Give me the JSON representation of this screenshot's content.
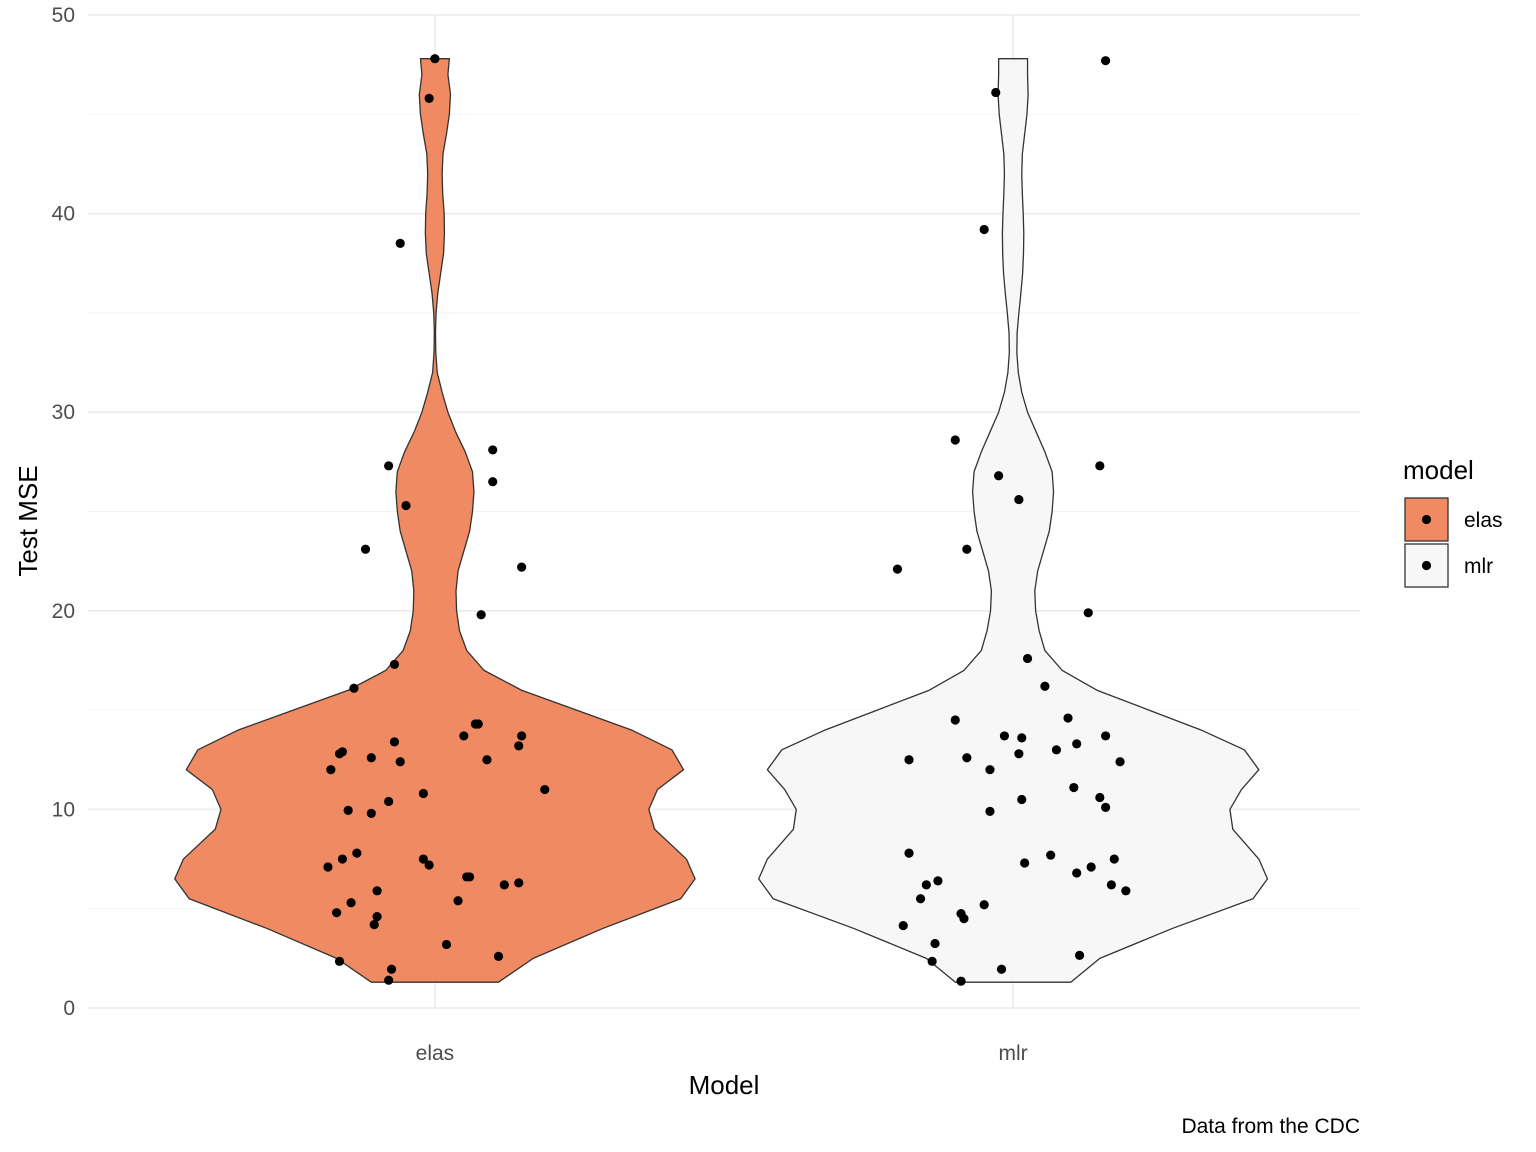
{
  "chart_data": {
    "type": "violin",
    "xlabel": "Model",
    "ylabel": "Test MSE",
    "caption": "Data from the CDC",
    "categories": [
      "elas",
      "mlr"
    ],
    "y_ticks": [
      0,
      10,
      20,
      30,
      40,
      50
    ],
    "ylim": [
      0,
      50
    ],
    "grid": true,
    "legend": {
      "title": "model",
      "placement": "right",
      "entries": [
        {
          "label": "elas",
          "color": "#EF8A62"
        },
        {
          "label": "mlr",
          "color": "#F7F7F7"
        }
      ]
    },
    "violins": [
      {
        "category": "elas",
        "color": "#EF8A62",
        "y_range": [
          1.3,
          47.8
        ],
        "density_profile": [
          [
            1.3,
            0.22
          ],
          [
            2.5,
            0.34
          ],
          [
            4.0,
            0.58
          ],
          [
            5.5,
            0.85
          ],
          [
            6.5,
            0.9
          ],
          [
            7.5,
            0.87
          ],
          [
            9.0,
            0.76
          ],
          [
            10.0,
            0.74
          ],
          [
            11.0,
            0.77
          ],
          [
            12.0,
            0.86
          ],
          [
            13.0,
            0.82
          ],
          [
            14.0,
            0.68
          ],
          [
            15.0,
            0.49
          ],
          [
            16.0,
            0.3
          ],
          [
            17.0,
            0.17
          ],
          [
            18.0,
            0.11
          ],
          [
            19.0,
            0.085
          ],
          [
            20.0,
            0.075
          ],
          [
            21.0,
            0.073
          ],
          [
            22.0,
            0.08
          ],
          [
            23.0,
            0.1
          ],
          [
            24.0,
            0.12
          ],
          [
            25.0,
            0.13
          ],
          [
            26.0,
            0.135
          ],
          [
            27.0,
            0.13
          ],
          [
            28.0,
            0.105
          ],
          [
            29.0,
            0.072
          ],
          [
            30.0,
            0.045
          ],
          [
            31.0,
            0.025
          ],
          [
            32.0,
            0.008
          ],
          [
            33.0,
            0.003
          ],
          [
            34.0,
            0.002
          ],
          [
            35.0,
            0.004
          ],
          [
            36.0,
            0.01
          ],
          [
            37.0,
            0.02
          ],
          [
            38.0,
            0.03
          ],
          [
            39.0,
            0.033
          ],
          [
            40.0,
            0.032
          ],
          [
            41.0,
            0.027
          ],
          [
            42.0,
            0.025
          ],
          [
            43.0,
            0.028
          ],
          [
            44.0,
            0.04
          ],
          [
            45.0,
            0.05
          ],
          [
            46.0,
            0.054
          ],
          [
            47.0,
            0.045
          ],
          [
            47.8,
            0.05
          ]
        ],
        "points": [
          [
            0.0,
            47.8
          ],
          [
            -0.01,
            45.8
          ],
          [
            -0.06,
            38.5
          ],
          [
            0.1,
            28.1
          ],
          [
            -0.08,
            27.3
          ],
          [
            0.1,
            26.5
          ],
          [
            -0.05,
            25.3
          ],
          [
            -0.12,
            23.1
          ],
          [
            0.15,
            22.2
          ],
          [
            0.08,
            19.8
          ],
          [
            -0.07,
            17.3
          ],
          [
            -0.14,
            16.1
          ],
          [
            0.07,
            14.3
          ],
          [
            0.075,
            14.3
          ],
          [
            0.05,
            13.7
          ],
          [
            0.15,
            13.7
          ],
          [
            -0.07,
            13.4
          ],
          [
            0.145,
            13.2
          ],
          [
            -0.16,
            12.9
          ],
          [
            -0.165,
            12.8
          ],
          [
            -0.11,
            12.6
          ],
          [
            0.09,
            12.5
          ],
          [
            -0.06,
            12.4
          ],
          [
            -0.18,
            12.0
          ],
          [
            0.19,
            11.0
          ],
          [
            -0.02,
            10.8
          ],
          [
            -0.08,
            10.4
          ],
          [
            -0.15,
            9.95
          ],
          [
            -0.11,
            9.8
          ],
          [
            -0.135,
            7.8
          ],
          [
            -0.16,
            7.5
          ],
          [
            -0.02,
            7.5
          ],
          [
            -0.01,
            7.2
          ],
          [
            -0.185,
            7.1
          ],
          [
            0.055,
            6.6
          ],
          [
            0.06,
            6.6
          ],
          [
            0.145,
            6.3
          ],
          [
            0.12,
            6.2
          ],
          [
            -0.1,
            5.9
          ],
          [
            0.04,
            5.4
          ],
          [
            -0.145,
            5.3
          ],
          [
            -0.17,
            4.8
          ],
          [
            -0.1,
            4.6
          ],
          [
            -0.105,
            4.2
          ],
          [
            0.02,
            3.2
          ],
          [
            0.11,
            2.6
          ],
          [
            -0.165,
            2.35
          ],
          [
            -0.075,
            1.95
          ],
          [
            -0.08,
            1.4
          ]
        ]
      },
      {
        "category": "mlr",
        "color": "#F7F7F7",
        "y_range": [
          1.3,
          47.8
        ],
        "density_profile": [
          [
            1.3,
            0.2
          ],
          [
            2.5,
            0.3
          ],
          [
            4.0,
            0.55
          ],
          [
            5.5,
            0.83
          ],
          [
            6.5,
            0.88
          ],
          [
            7.5,
            0.85
          ],
          [
            9.0,
            0.76
          ],
          [
            10.0,
            0.75
          ],
          [
            11.0,
            0.79
          ],
          [
            12.0,
            0.85
          ],
          [
            13.0,
            0.8
          ],
          [
            14.0,
            0.65
          ],
          [
            15.0,
            0.47
          ],
          [
            16.0,
            0.29
          ],
          [
            17.0,
            0.17
          ],
          [
            18.0,
            0.11
          ],
          [
            19.0,
            0.09
          ],
          [
            20.0,
            0.078
          ],
          [
            21.0,
            0.075
          ],
          [
            22.0,
            0.085
          ],
          [
            23.0,
            0.105
          ],
          [
            24.0,
            0.125
          ],
          [
            25.0,
            0.135
          ],
          [
            26.0,
            0.14
          ],
          [
            27.0,
            0.135
          ],
          [
            28.0,
            0.11
          ],
          [
            29.0,
            0.08
          ],
          [
            30.0,
            0.05
          ],
          [
            31.0,
            0.03
          ],
          [
            32.0,
            0.018
          ],
          [
            33.0,
            0.013
          ],
          [
            34.0,
            0.014
          ],
          [
            35.0,
            0.02
          ],
          [
            36.0,
            0.027
          ],
          [
            37.0,
            0.033
          ],
          [
            38.0,
            0.036
          ],
          [
            39.0,
            0.037
          ],
          [
            40.0,
            0.035
          ],
          [
            41.0,
            0.032
          ],
          [
            42.0,
            0.03
          ],
          [
            43.0,
            0.032
          ],
          [
            44.0,
            0.04
          ],
          [
            45.0,
            0.048
          ],
          [
            46.0,
            0.052
          ],
          [
            47.0,
            0.05
          ],
          [
            47.8,
            0.05
          ]
        ],
        "points": [
          [
            0.16,
            47.7
          ],
          [
            -0.03,
            46.1
          ],
          [
            -0.05,
            39.2
          ],
          [
            -0.1,
            28.6
          ],
          [
            0.15,
            27.3
          ],
          [
            -0.025,
            26.8
          ],
          [
            0.01,
            25.6
          ],
          [
            -0.08,
            23.1
          ],
          [
            -0.2,
            22.1
          ],
          [
            0.13,
            19.9
          ],
          [
            0.025,
            17.6
          ],
          [
            0.055,
            16.2
          ],
          [
            -0.1,
            14.5
          ],
          [
            0.095,
            14.6
          ],
          [
            -0.015,
            13.7
          ],
          [
            0.015,
            13.6
          ],
          [
            0.16,
            13.7
          ],
          [
            0.11,
            13.3
          ],
          [
            0.075,
            13.0
          ],
          [
            0.01,
            12.8
          ],
          [
            -0.18,
            12.5
          ],
          [
            -0.08,
            12.6
          ],
          [
            0.185,
            12.4
          ],
          [
            -0.04,
            12.0
          ],
          [
            0.105,
            11.1
          ],
          [
            0.15,
            10.6
          ],
          [
            0.015,
            10.5
          ],
          [
            0.16,
            10.1
          ],
          [
            -0.04,
            9.9
          ],
          [
            -0.18,
            7.8
          ],
          [
            0.065,
            7.7
          ],
          [
            0.175,
            7.5
          ],
          [
            0.02,
            7.3
          ],
          [
            0.135,
            7.1
          ],
          [
            0.11,
            6.8
          ],
          [
            -0.13,
            6.4
          ],
          [
            0.17,
            6.2
          ],
          [
            -0.15,
            6.2
          ],
          [
            0.195,
            5.9
          ],
          [
            -0.16,
            5.5
          ],
          [
            -0.05,
            5.2
          ],
          [
            -0.09,
            4.75
          ],
          [
            -0.085,
            4.5
          ],
          [
            -0.19,
            4.15
          ],
          [
            -0.135,
            3.25
          ],
          [
            0.115,
            2.65
          ],
          [
            -0.14,
            2.35
          ],
          [
            -0.02,
            1.95
          ],
          [
            -0.09,
            1.35
          ]
        ]
      }
    ]
  }
}
